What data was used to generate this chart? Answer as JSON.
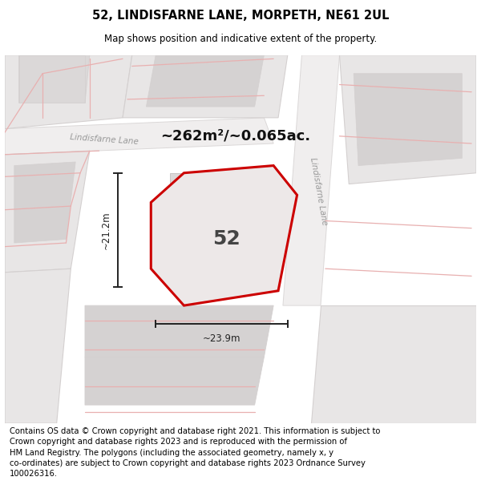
{
  "title": "52, LINDISFARNE LANE, MORPETH, NE61 2UL",
  "subtitle": "Map shows position and indicative extent of the property.",
  "footer": "Contains OS data © Crown copyright and database right 2021. This information is subject to\nCrown copyright and database rights 2023 and is reproduced with the permission of\nHM Land Registry. The polygons (including the associated geometry, namely x, y\nco-ordinates) are subject to Crown copyright and database rights 2023 Ordnance Survey\n100026316.",
  "area_text": "~262m²/~0.065ac.",
  "number_text": "52",
  "dim_h": "~21.2m",
  "dim_w": "~23.9m",
  "label_h": "Lindisfarne Lane",
  "label_v": "Lindisfarne Lane",
  "map_bg": "#f7f6f6",
  "block_fill": "#e8e6e6",
  "block_edge": "#d4d0d0",
  "road_fill": "#f0eeee",
  "road_edge": "#dbd8d8",
  "pink": "#e89898",
  "light_pink": "#e8b0b0",
  "plot_fill": "#ede8e8",
  "plot_edge": "#cc0000",
  "bldg_fill": "#dbd8d8",
  "bldg_edge": "#c8c4c4",
  "dim_color": "#222222",
  "text_color": "#444444",
  "road_label_color": "#999999",
  "title_fontsize": 10.5,
  "subtitle_fontsize": 8.5,
  "footer_fontsize": 7.2,
  "area_fontsize": 13,
  "num_fontsize": 18,
  "dim_fontsize": 8.5,
  "road_label_fontsize": 7.5
}
